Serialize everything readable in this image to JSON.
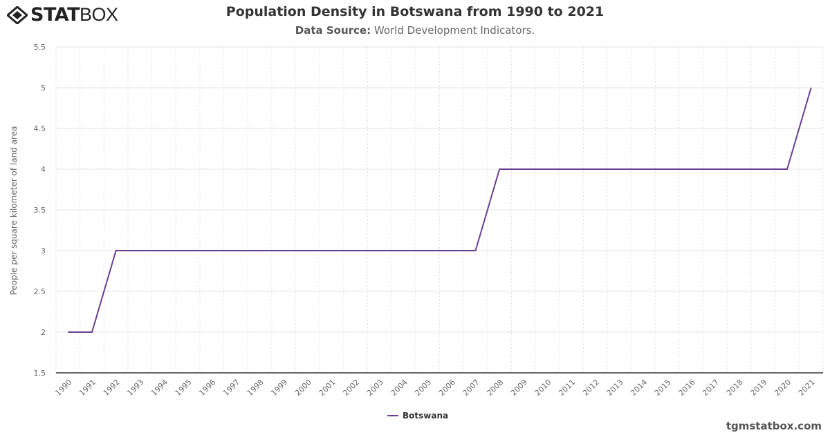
{
  "header": {
    "logo_bold": "STAT",
    "logo_light": "BOX",
    "title": "Population Density in Botswana from 1990 to 2021",
    "subtitle_label": "Data Source:",
    "subtitle_value": "World Development Indicators."
  },
  "footer": {
    "credit": "tgmstatbox.com"
  },
  "chart_data": {
    "type": "line",
    "title": "Population Density in Botswana from 1990 to 2021",
    "ylabel": "People per square kilometer of land area",
    "xlabel": "",
    "ylim": [
      1.5,
      5.5
    ],
    "yticks": [
      "1.5",
      "2",
      "2.5",
      "3",
      "3.5",
      "4",
      "4.5",
      "5",
      "5.5"
    ],
    "categories": [
      "1990",
      "1991",
      "1992",
      "1993",
      "1994",
      "1995",
      "1996",
      "1997",
      "1998",
      "1999",
      "2000",
      "2001",
      "2002",
      "2003",
      "2004",
      "2005",
      "2006",
      "2007",
      "2008",
      "2009",
      "2010",
      "2011",
      "2012",
      "2013",
      "2014",
      "2015",
      "2016",
      "2017",
      "2018",
      "2019",
      "2020",
      "2021"
    ],
    "series": [
      {
        "name": "Botswana",
        "color": "#6b3e91",
        "values": [
          2,
          2,
          3,
          3,
          3,
          3,
          3,
          3,
          3,
          3,
          3,
          3,
          3,
          3,
          3,
          3,
          3,
          3,
          4,
          4,
          4,
          4,
          4,
          4,
          4,
          4,
          4,
          4,
          4,
          4,
          4,
          5
        ]
      }
    ],
    "grid": true,
    "legend": "bottom-center"
  }
}
